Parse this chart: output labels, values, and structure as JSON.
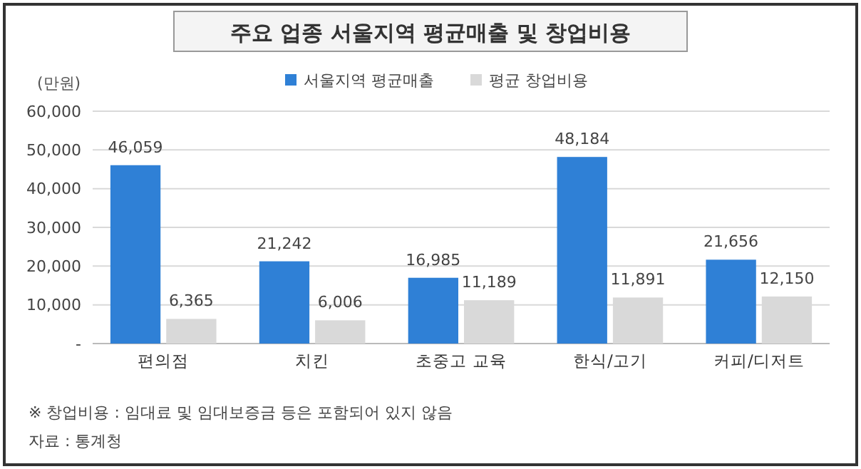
{
  "chart_data": {
    "type": "bar",
    "title": "주요 업종 서울지역 평균매출 및 창업비용",
    "ylabel": "(만원)",
    "categories": [
      "편의점",
      "치킨",
      "초중고 교육",
      "한식/고기",
      "커피/디저트"
    ],
    "series": [
      {
        "name": "서울지역 평균매출",
        "color": "#2f80d6",
        "values": [
          46059,
          21242,
          16985,
          48184,
          21656
        ],
        "value_labels": [
          "46,059",
          "21,242",
          "16,985",
          "48,184",
          "21,656"
        ]
      },
      {
        "name": "평균 창업비용",
        "color": "#d9d9d9",
        "values": [
          6365,
          6006,
          11189,
          11891,
          12150
        ],
        "value_labels": [
          "6,365",
          "6,006",
          "11,189",
          "11,891",
          "12,150"
        ]
      }
    ],
    "ylim": [
      0,
      60000
    ],
    "yticks": [
      {
        "value": 0,
        "label": "-"
      },
      {
        "value": 10000,
        "label": "10,000"
      },
      {
        "value": 20000,
        "label": "20,000"
      },
      {
        "value": 30000,
        "label": "30,000"
      },
      {
        "value": 40000,
        "label": "40,000"
      },
      {
        "value": 50000,
        "label": "50,000"
      },
      {
        "value": 60000,
        "label": "60,000"
      }
    ],
    "grid": "y",
    "legend": "top",
    "annotations": [
      "※ 창업비용 : 임대료 및 임대보증금 등은 포함되어 있지 않음",
      "자료 : 통계청"
    ]
  }
}
